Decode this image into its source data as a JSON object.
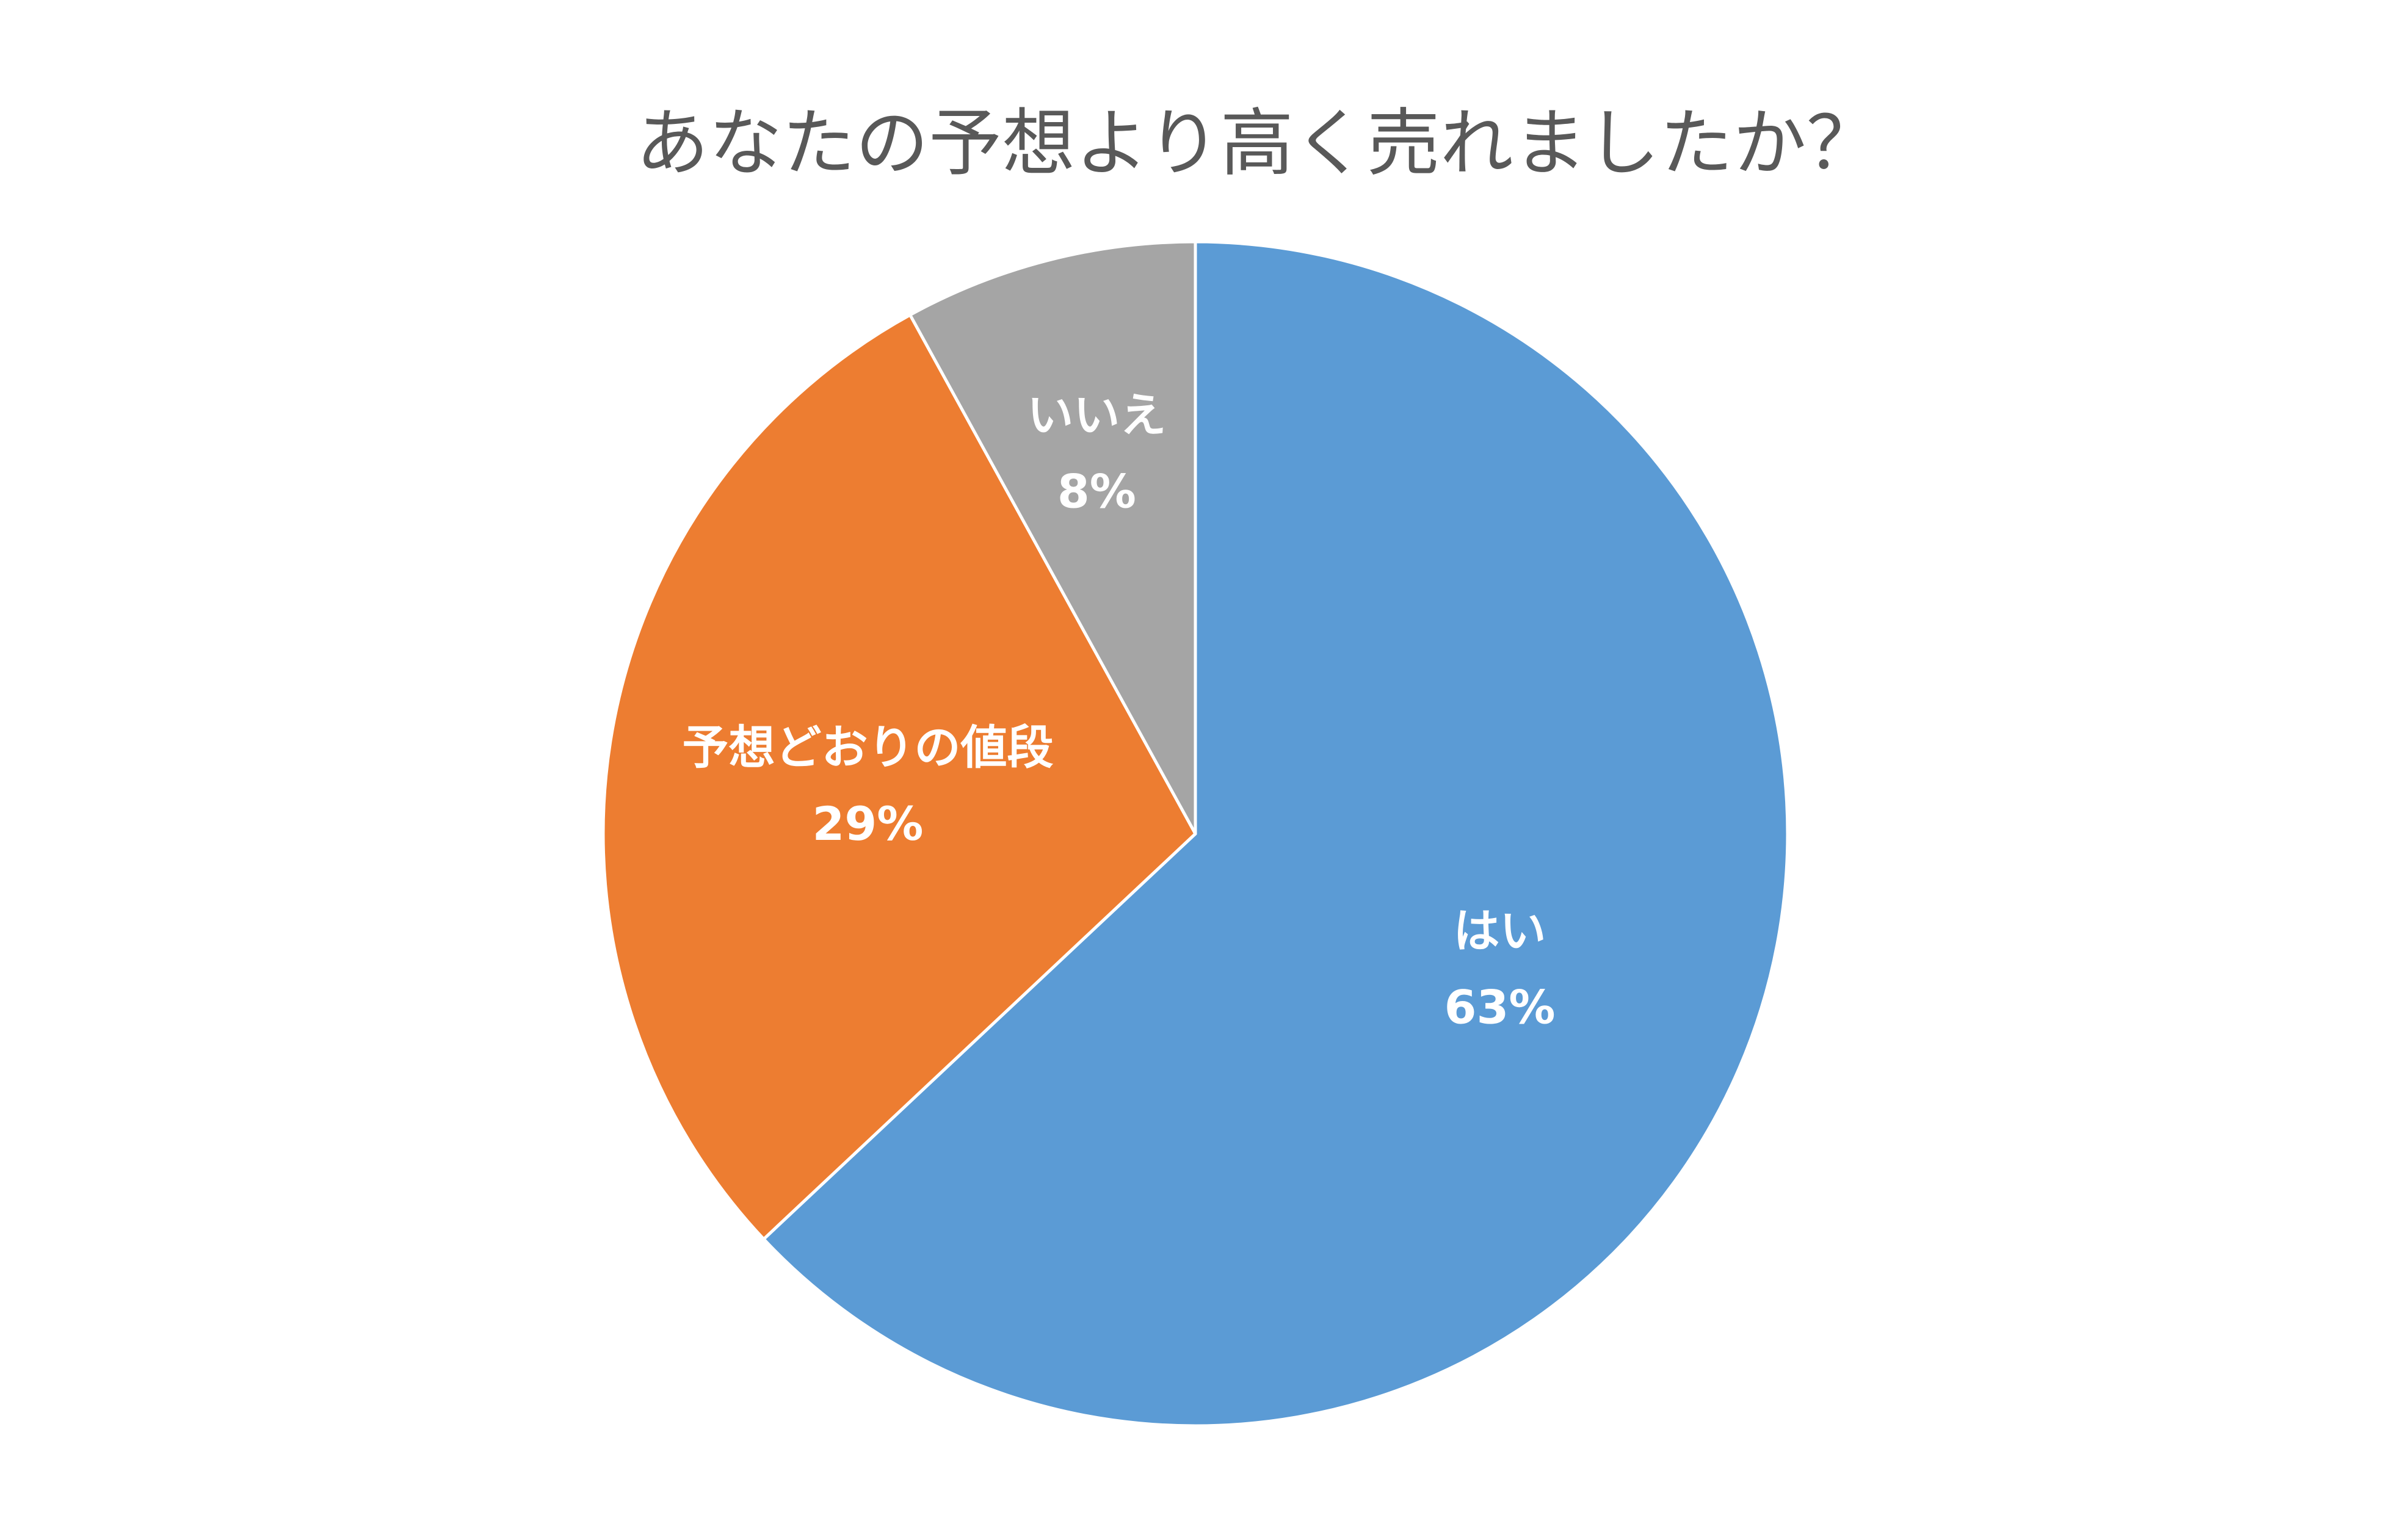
{
  "chart_data": {
    "type": "pie",
    "title": "あなたの予想より高く売れましたか？",
    "slices": [
      {
        "label": "はい",
        "value": 63,
        "value_label": "63%",
        "color": "#5B9BD5"
      },
      {
        "label": "予想どおりの値段",
        "value": 29,
        "value_label": "29%",
        "color": "#ED7D31"
      },
      {
        "label": "いいえ",
        "value": 8,
        "value_label": "8%",
        "color": "#A5A5A5"
      }
    ],
    "start_angle": "12 o'clock",
    "direction": "clockwise",
    "slice_border_color": "#FFFFFF",
    "label_color": "#FFFFFF",
    "legend": "none"
  }
}
